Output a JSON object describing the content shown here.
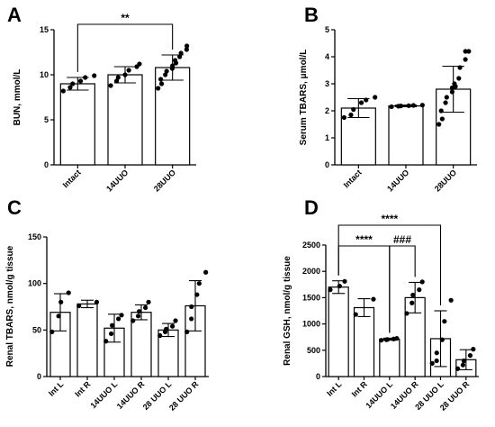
{
  "chart_data": [
    {
      "type": "bar",
      "panel": "A",
      "ylabel": "BUN, mmol/L",
      "ylim": [
        0,
        15
      ],
      "yticks": [
        0,
        5,
        10,
        15
      ],
      "categories": [
        "Intact",
        "14UUO",
        "28UUO"
      ],
      "values": [
        9.0,
        10.0,
        10.8
      ],
      "errors": [
        0.7,
        0.9,
        1.4
      ],
      "points": [
        [
          8.2,
          8.6,
          9.0,
          9.3,
          9.7,
          9.9
        ],
        [
          8.8,
          9.3,
          9.7,
          10.0,
          10.5,
          10.9,
          11.2
        ],
        [
          8.5,
          9.0,
          9.5,
          10.0,
          10.4,
          10.7,
          11.0,
          11.3,
          11.6,
          12.0,
          12.4,
          12.8,
          13.2
        ]
      ],
      "annotations": [
        {
          "text": "**",
          "from": 0,
          "to": 2
        }
      ]
    },
    {
      "type": "bar",
      "panel": "B",
      "ylabel": "Serum TBARS, μmol/L",
      "ylim": [
        0,
        5
      ],
      "yticks": [
        0,
        1,
        2,
        3,
        4,
        5
      ],
      "categories": [
        "Intact",
        "14UUO",
        "28UUO"
      ],
      "values": [
        2.1,
        2.18,
        2.8
      ],
      "errors": [
        0.35,
        0.03,
        0.85
      ],
      "points": [
        [
          1.75,
          1.85,
          2.05,
          2.3,
          2.4,
          2.5
        ],
        [
          2.15,
          2.17,
          2.18,
          2.19,
          2.2,
          2.21
        ],
        [
          1.5,
          1.7,
          2.0,
          2.3,
          2.5,
          2.7,
          2.85,
          2.9,
          3.0,
          3.2,
          3.6,
          3.9,
          4.2,
          4.2
        ]
      ],
      "annotations": []
    },
    {
      "type": "bar",
      "panel": "C",
      "ylabel": "Renal TBARS, nmol/g tissue",
      "ylim": [
        0,
        150
      ],
      "yticks": [
        0,
        50,
        100,
        150
      ],
      "categories": [
        "Int L",
        "Int R",
        "14UUO L",
        "14UUO R",
        "28 UUO L",
        "28 UUO R"
      ],
      "values": [
        69,
        78,
        52,
        69,
        50,
        76
      ],
      "errors": [
        20,
        4,
        15,
        8,
        7,
        27
      ],
      "points": [
        [
          48,
          65,
          80,
          90
        ],
        [
          76,
          80
        ],
        [
          38,
          46,
          55,
          62,
          66
        ],
        [
          60,
          65,
          70,
          74,
          80
        ],
        [
          44,
          48,
          51,
          54,
          60
        ],
        [
          48,
          62,
          75,
          88,
          100,
          112
        ]
      ],
      "annotations": []
    },
    {
      "type": "bar",
      "panel": "D",
      "ylabel": "Renal GSH, nmol/g tissue",
      "ylim": [
        0,
        2500
      ],
      "yticks": [
        0,
        500,
        1000,
        1500,
        2000,
        2500
      ],
      "categories": [
        "Int L",
        "Int R",
        "14UUO L",
        "14UUO R",
        "28 UUO L",
        "28 UUO R"
      ],
      "values": [
        1700,
        1310,
        710,
        1500,
        720,
        320
      ],
      "errors": [
        120,
        170,
        20,
        290,
        530,
        190
      ],
      "points": [
        [
          1650,
          1720,
          1810
        ],
        [
          1180,
          1470
        ],
        [
          690,
          700,
          705,
          715,
          725
        ],
        [
          1200,
          1400,
          1550,
          1650,
          1800
        ],
        [
          250,
          300,
          450,
          700,
          1050,
          1450
        ],
        [
          150,
          220,
          300,
          400,
          520
        ]
      ],
      "annotations": [
        {
          "text": "****",
          "from": 0,
          "to": 2
        },
        {
          "text": "###",
          "from": 2,
          "to": 3
        },
        {
          "text": "****",
          "from": 0,
          "to": 4
        }
      ]
    }
  ]
}
